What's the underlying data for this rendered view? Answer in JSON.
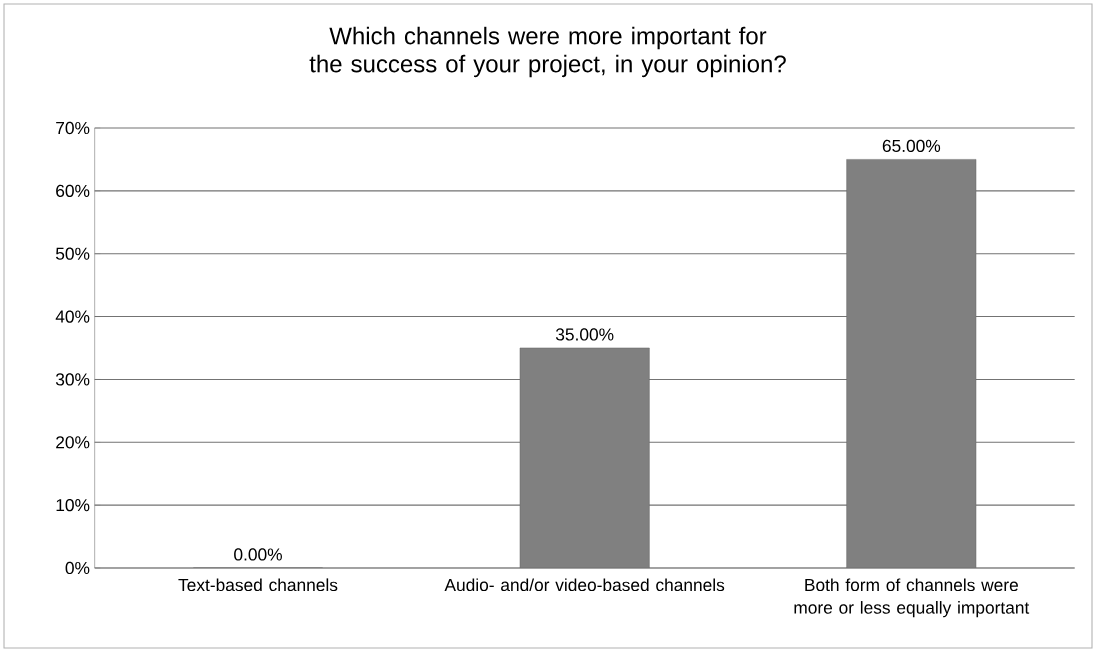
{
  "chart_data": {
    "type": "bar",
    "title": "Which channels were more important for the success of your project, in your opinion?",
    "categories": [
      "Text-based channels",
      "Audio- and/or video-based channels",
      "Both form of channels were more or less equally important"
    ],
    "values": [
      0,
      35,
      65
    ],
    "value_labels": [
      "0.00%",
      "35.00%",
      "65.00%"
    ],
    "color": "#808080",
    "ylim": [
      0,
      70
    ],
    "yticks": [
      {
        "value": 0,
        "label": "0%"
      },
      {
        "value": 10,
        "label": "10%"
      },
      {
        "value": 20,
        "label": "20%"
      },
      {
        "value": 30,
        "label": "30%"
      },
      {
        "value": 40,
        "label": "40%"
      },
      {
        "value": 50,
        "label": "50%"
      },
      {
        "value": 60,
        "label": "60%"
      },
      {
        "value": 70,
        "label": "70%"
      }
    ],
    "grid": "y"
  }
}
